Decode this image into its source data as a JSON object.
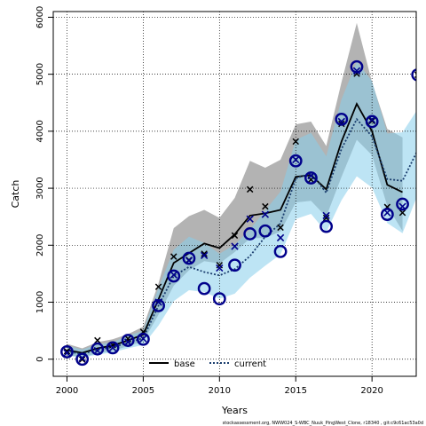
{
  "chart_data": {
    "type": "line",
    "xlabel": "Years",
    "ylabel": "Catch",
    "xlim": [
      1999.1,
      2022.9
    ],
    "ylim": [
      -300,
      6100
    ],
    "xticks": [
      2000,
      2005,
      2010,
      2015,
      2020
    ],
    "yticks": [
      0,
      1000,
      2000,
      3000,
      4000,
      5000,
      6000
    ],
    "grid": true,
    "legend_position": "bottom-center",
    "footnote": "stockassessment.org, NWW024_S-WBC_Nuuk_PingWest_Clone, r18340 , git:c9c61ac53a0d",
    "colors": {
      "base_line": "#000000",
      "base_band": "#a6a6a6",
      "current_line": "#1a3d6e",
      "current_band": "#87ceeb",
      "points_base": "#000000",
      "points_current": "#00008b"
    },
    "years": [
      2000,
      2001,
      2002,
      2003,
      2004,
      2005,
      2006,
      2007,
      2008,
      2009,
      2010,
      2011,
      2012,
      2013,
      2014,
      2015,
      2016,
      2017,
      2018,
      2019,
      2020,
      2021,
      2022,
      2023
    ],
    "observed": [
      140,
      -5,
      330,
      250,
      360,
      480,
      1270,
      1800,
      1740,
      1850,
      1650,
      2170,
      2980,
      2680,
      2310,
      3820,
      3150,
      2480,
      4130,
      5010,
      4180,
      2670,
      2570,
      4990
    ],
    "series": [
      {
        "name": "base",
        "style": "solid",
        "years": [
          2000,
          2001,
          2002,
          2003,
          2004,
          2005,
          2006,
          2007,
          2008,
          2009,
          2010,
          2011,
          2012,
          2013,
          2014,
          2015,
          2016,
          2017,
          2018,
          2019,
          2020,
          2021,
          2022
        ],
        "estimate": [
          160,
          110,
          190,
          240,
          330,
          430,
          1050,
          1690,
          1860,
          2030,
          1950,
          2190,
          2520,
          2560,
          2620,
          3200,
          3230,
          2980,
          3820,
          4480,
          4000,
          3060,
          2930
        ],
        "lower": [
          70,
          40,
          100,
          150,
          230,
          310,
          780,
          1290,
          1560,
          1720,
          1680,
          1880,
          2120,
          2130,
          2240,
          2750,
          2780,
          2500,
          3200,
          3850,
          3580,
          2690,
          2250
        ],
        "upper": [
          270,
          190,
          300,
          350,
          440,
          570,
          1330,
          2300,
          2510,
          2620,
          2480,
          2830,
          3480,
          3360,
          3500,
          4120,
          4170,
          3740,
          4860,
          5900,
          4860,
          4040,
          3890
        ],
        "predicted": [
          110,
          20,
          150,
          200,
          300,
          360,
          1000,
          1480,
          1730,
          1820,
          1600,
          1980,
          2460,
          2540,
          2130,
          3500,
          3220,
          2520,
          4170,
          5060,
          4200,
          2570,
          2680
        ]
      },
      {
        "name": "current",
        "style": "dotted",
        "years": [
          2000,
          2001,
          2002,
          2003,
          2004,
          2005,
          2006,
          2007,
          2008,
          2009,
          2010,
          2011,
          2012,
          2013,
          2014,
          2015,
          2016,
          2017,
          2018,
          2019,
          2020,
          2021,
          2022,
          2023
        ],
        "estimate": [
          140,
          90,
          170,
          210,
          290,
          370,
          940,
          1460,
          1620,
          1530,
          1470,
          1580,
          1810,
          2150,
          2380,
          3170,
          3270,
          2920,
          3690,
          4210,
          3910,
          3160,
          3130,
          3670
        ],
        "lower": [
          60,
          30,
          80,
          120,
          190,
          250,
          590,
          1020,
          1210,
          1180,
          1060,
          1150,
          1430,
          1640,
          1840,
          2460,
          2550,
          2230,
          2790,
          3210,
          3010,
          2390,
          2210,
          2890
        ],
        "upper": [
          240,
          170,
          260,
          300,
          410,
          500,
          1250,
          1920,
          2150,
          2040,
          1850,
          2010,
          2280,
          2610,
          2940,
          3850,
          3970,
          3560,
          4560,
          5220,
          4880,
          3960,
          3980,
          4390
        ],
        "predicted": [
          130,
          0,
          180,
          200,
          330,
          350,
          940,
          1460,
          1770,
          1240,
          1060,
          1650,
          2200,
          2250,
          1890,
          3480,
          3180,
          2330,
          4210,
          5130,
          4170,
          2540,
          2720,
          4990
        ]
      }
    ]
  }
}
